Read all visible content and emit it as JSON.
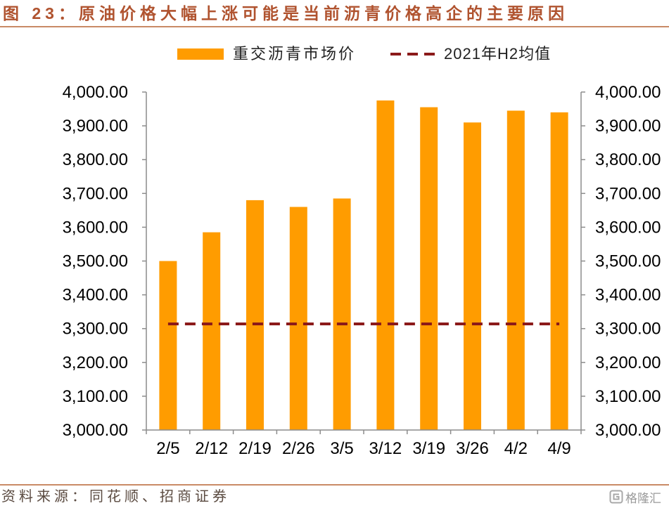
{
  "header": {
    "title": "图 23：原油价格大幅上涨可能是当前沥青价格高企的主要原因"
  },
  "chart_data": {
    "type": "bar",
    "categories": [
      "2/5",
      "2/12",
      "2/19",
      "2/26",
      "3/5",
      "3/12",
      "3/19",
      "3/26",
      "4/2",
      "4/9"
    ],
    "series": [
      {
        "name": "重交沥青市场价",
        "type": "bar",
        "color": "#FF9C00",
        "values": [
          3500,
          3585,
          3680,
          3660,
          3685,
          3975,
          3955,
          3910,
          3945,
          3940
        ]
      },
      {
        "name": "2021年H2均值",
        "type": "line",
        "line_style": "dashed",
        "color": "#8B1A1A",
        "values": [
          3314,
          3314,
          3314,
          3314,
          3314,
          3314,
          3314,
          3314,
          3314,
          3314
        ]
      }
    ],
    "ylim": [
      3000,
      4000
    ],
    "secondary_ylim": [
      3000,
      4000
    ],
    "yticks": [
      3000,
      3100,
      3200,
      3300,
      3400,
      3500,
      3600,
      3700,
      3800,
      3900,
      4000
    ],
    "ytick_labels": [
      "3,000.00",
      "3,100.00",
      "3,200.00",
      "3,300.00",
      "3,400.00",
      "3,500.00",
      "3,600.00",
      "3,700.00",
      "3,800.00",
      "3,900.00",
      "4,000.00"
    ],
    "grid": false,
    "legend_position": "top-center"
  },
  "footer": {
    "source": "资料来源：同花顺、招商证券"
  },
  "watermark": {
    "text": "格隆汇"
  },
  "colors": {
    "title": "#B0532F",
    "rule": "#C98A66",
    "axis": "#8C8C8C"
  }
}
